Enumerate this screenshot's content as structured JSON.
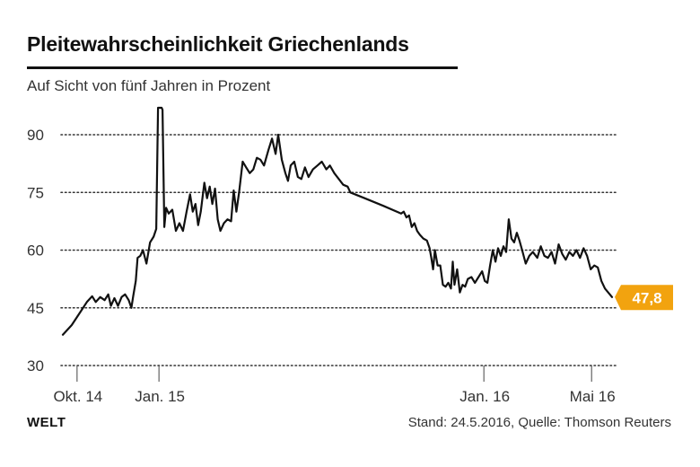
{
  "header": {
    "title": "Pleitewahrscheinlichkeit Griechenlands",
    "subtitle": "Auf Sicht von fünf Jahren in Prozent"
  },
  "footer": {
    "brand": "WELT",
    "source": "Stand: 24.5.2016, Quelle: Thomson Reuters"
  },
  "colors": {
    "line": "#111111",
    "grid": "#333333",
    "accent": "#f2a30f"
  },
  "chart_data": {
    "type": "line",
    "title": "Pleitewahrscheinlichkeit Griechenlands",
    "subtitle": "Auf Sicht von fünf Jahren in Prozent",
    "ylim": [
      30,
      98
    ],
    "yticks": [
      90,
      75,
      60,
      45,
      30
    ],
    "grid": true,
    "grid_style": "dotted",
    "xlim": [
      "2014-09-15",
      "2016-05-24"
    ],
    "xticks": [
      {
        "date": "2014-10-01",
        "label": "Okt. 14"
      },
      {
        "date": "2015-01-01",
        "label": "Jan. 15"
      },
      {
        "date": "2016-01-01",
        "label": "Jan. 16"
      },
      {
        "date": "2016-05-01",
        "label": "Mai 16"
      }
    ],
    "last_value_label": "47,8",
    "series": [
      {
        "points": [
          [
            "2014-09-15",
            38.0
          ],
          [
            "2014-09-25",
            40.5
          ],
          [
            "2014-10-05",
            44.0
          ],
          [
            "2014-10-12",
            46.5
          ],
          [
            "2014-10-18",
            48.0
          ],
          [
            "2014-10-22",
            46.5
          ],
          [
            "2014-10-27",
            47.8
          ],
          [
            "2014-11-01",
            47.0
          ],
          [
            "2014-11-05",
            48.5
          ],
          [
            "2014-11-08",
            45.5
          ],
          [
            "2014-11-12",
            47.5
          ],
          [
            "2014-11-16",
            45.5
          ],
          [
            "2014-11-20",
            47.8
          ],
          [
            "2014-11-24",
            48.5
          ],
          [
            "2014-11-28",
            47.0
          ],
          [
            "2014-12-01",
            45.0
          ],
          [
            "2014-12-03",
            48.0
          ],
          [
            "2014-12-06",
            52.0
          ],
          [
            "2014-12-08",
            58.0
          ],
          [
            "2014-12-11",
            58.5
          ],
          [
            "2014-12-14",
            60.0
          ],
          [
            "2014-12-18",
            56.5
          ],
          [
            "2014-12-22",
            62.0
          ],
          [
            "2014-12-26",
            63.5
          ],
          [
            "2014-12-29",
            65.5
          ],
          [
            "2014-12-31",
            97.0
          ],
          [
            "2015-01-04",
            97.0
          ],
          [
            "2015-01-05",
            96.5
          ],
          [
            "2015-01-07",
            66.0
          ],
          [
            "2015-01-09",
            71.0
          ],
          [
            "2015-01-12",
            69.5
          ],
          [
            "2015-01-16",
            70.5
          ],
          [
            "2015-01-20",
            65.0
          ],
          [
            "2015-01-24",
            67.0
          ],
          [
            "2015-01-28",
            65.0
          ],
          [
            "2015-02-01",
            70.0
          ],
          [
            "2015-02-05",
            74.5
          ],
          [
            "2015-02-08",
            70.0
          ],
          [
            "2015-02-11",
            72.0
          ],
          [
            "2015-02-14",
            66.5
          ],
          [
            "2015-02-17",
            70.0
          ],
          [
            "2015-02-21",
            77.5
          ],
          [
            "2015-02-24",
            73.5
          ],
          [
            "2015-02-27",
            76.5
          ],
          [
            "2015-03-02",
            72.0
          ],
          [
            "2015-03-05",
            76.0
          ],
          [
            "2015-03-08",
            68.0
          ],
          [
            "2015-03-11",
            65.0
          ],
          [
            "2015-03-15",
            67.0
          ],
          [
            "2015-03-19",
            68.0
          ],
          [
            "2015-03-23",
            67.5
          ],
          [
            "2015-03-26",
            75.5
          ],
          [
            "2015-03-29",
            70.0
          ],
          [
            "2015-04-01",
            75.0
          ],
          [
            "2015-04-05",
            83.0
          ],
          [
            "2015-04-09",
            81.5
          ],
          [
            "2015-04-13",
            80.0
          ],
          [
            "2015-04-17",
            81.0
          ],
          [
            "2015-04-21",
            84.0
          ],
          [
            "2015-04-25",
            83.5
          ],
          [
            "2015-04-29",
            82.0
          ],
          [
            "2015-05-04",
            86.0
          ],
          [
            "2015-05-08",
            89.0
          ],
          [
            "2015-05-12",
            85.0
          ],
          [
            "2015-05-15",
            90.0
          ],
          [
            "2015-05-19",
            83.5
          ],
          [
            "2015-05-23",
            80.0
          ],
          [
            "2015-05-26",
            78.0
          ],
          [
            "2015-05-29",
            82.0
          ],
          [
            "2015-06-02",
            83.0
          ],
          [
            "2015-06-06",
            79.0
          ],
          [
            "2015-06-10",
            78.5
          ],
          [
            "2015-06-14",
            81.5
          ],
          [
            "2015-06-18",
            79.0
          ],
          [
            "2015-06-23",
            81.0
          ],
          [
            "2015-06-28",
            82.0
          ],
          [
            "2015-07-03",
            83.0
          ],
          [
            "2015-07-08",
            81.0
          ],
          [
            "2015-07-12",
            82.0
          ],
          [
            "2015-07-17",
            80.0
          ],
          [
            "2015-07-22",
            78.5
          ],
          [
            "2015-07-27",
            77.0
          ],
          [
            "2015-08-01",
            76.5
          ],
          [
            "2015-08-04",
            75.0
          ],
          [
            "2015-08-20",
            73.5
          ],
          [
            "2015-09-10",
            71.5
          ],
          [
            "2015-09-30",
            69.5
          ],
          [
            "2015-10-03",
            70.0
          ],
          [
            "2015-10-06",
            68.5
          ],
          [
            "2015-10-09",
            69.0
          ],
          [
            "2015-10-12",
            66.0
          ],
          [
            "2015-10-15",
            67.0
          ],
          [
            "2015-10-18",
            65.0
          ],
          [
            "2015-10-21",
            64.0
          ],
          [
            "2015-10-25",
            63.0
          ],
          [
            "2015-10-29",
            62.5
          ],
          [
            "2015-11-01",
            60.5
          ],
          [
            "2015-11-03",
            58.0
          ],
          [
            "2015-11-05",
            55.0
          ],
          [
            "2015-11-07",
            60.0
          ],
          [
            "2015-11-10",
            56.0
          ],
          [
            "2015-11-13",
            56.0
          ],
          [
            "2015-11-16",
            51.0
          ],
          [
            "2015-11-19",
            50.5
          ],
          [
            "2015-11-22",
            51.5
          ],
          [
            "2015-11-25",
            50.0
          ],
          [
            "2015-11-27",
            57.0
          ],
          [
            "2015-11-29",
            51.0
          ],
          [
            "2015-12-02",
            55.0
          ],
          [
            "2015-12-05",
            49.0
          ],
          [
            "2015-12-08",
            51.0
          ],
          [
            "2015-12-11",
            50.5
          ],
          [
            "2015-12-14",
            52.5
          ],
          [
            "2015-12-18",
            53.0
          ],
          [
            "2015-12-22",
            51.5
          ],
          [
            "2015-12-26",
            53.0
          ],
          [
            "2015-12-30",
            54.5
          ],
          [
            "2016-01-02",
            52.0
          ],
          [
            "2016-01-05",
            51.5
          ],
          [
            "2016-01-08",
            56.0
          ],
          [
            "2016-01-11",
            60.0
          ],
          [
            "2016-01-14",
            57.0
          ],
          [
            "2016-01-17",
            60.5
          ],
          [
            "2016-01-20",
            58.5
          ],
          [
            "2016-01-23",
            61.0
          ],
          [
            "2016-01-26",
            59.5
          ],
          [
            "2016-01-29",
            68.0
          ],
          [
            "2016-02-01",
            63.0
          ],
          [
            "2016-02-04",
            62.0
          ],
          [
            "2016-02-07",
            64.5
          ],
          [
            "2016-02-10",
            62.5
          ],
          [
            "2016-02-13",
            60.0
          ],
          [
            "2016-02-17",
            56.5
          ],
          [
            "2016-02-21",
            58.5
          ],
          [
            "2016-02-25",
            59.5
          ],
          [
            "2016-03-01",
            58.0
          ],
          [
            "2016-03-05",
            61.0
          ],
          [
            "2016-03-09",
            58.5
          ],
          [
            "2016-03-13",
            58.0
          ],
          [
            "2016-03-17",
            59.5
          ],
          [
            "2016-03-21",
            56.5
          ],
          [
            "2016-03-25",
            61.5
          ],
          [
            "2016-03-29",
            59.0
          ],
          [
            "2016-04-02",
            57.5
          ],
          [
            "2016-04-06",
            59.5
          ],
          [
            "2016-04-10",
            58.5
          ],
          [
            "2016-04-14",
            60.0
          ],
          [
            "2016-04-18",
            58.0
          ],
          [
            "2016-04-22",
            60.5
          ],
          [
            "2016-04-26",
            58.5
          ],
          [
            "2016-04-30",
            55.0
          ],
          [
            "2016-05-04",
            56.0
          ],
          [
            "2016-05-08",
            55.5
          ],
          [
            "2016-05-12",
            52.0
          ],
          [
            "2016-05-16",
            50.0
          ],
          [
            "2016-05-24",
            47.8
          ]
        ]
      }
    ]
  }
}
